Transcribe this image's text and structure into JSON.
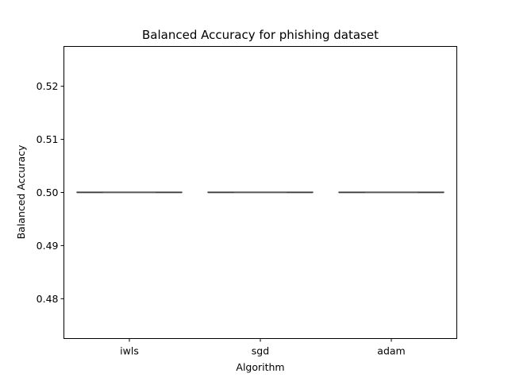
{
  "chart_data": {
    "type": "box",
    "title": "Balanced Accuracy for phishing dataset",
    "xlabel": "Algorithm",
    "ylabel": "Balanced Accuracy",
    "categories": [
      "iwls",
      "sgd",
      "adam"
    ],
    "ylim": [
      0.4725,
      0.5275
    ],
    "yticks": [
      0.48,
      0.49,
      0.5,
      0.51,
      0.52
    ],
    "ytick_labels": [
      "0.48",
      "0.49",
      "0.50",
      "0.51",
      "0.52"
    ],
    "grid": false,
    "boxes": [
      {
        "category": "iwls",
        "min": 0.5,
        "q1": 0.5,
        "median": 0.5,
        "q3": 0.5,
        "max": 0.5
      },
      {
        "category": "sgd",
        "min": 0.5,
        "q1": 0.5,
        "median": 0.5,
        "q3": 0.5,
        "max": 0.5
      },
      {
        "category": "adam",
        "min": 0.5,
        "q1": 0.5,
        "median": 0.5,
        "q3": 0.5,
        "max": 0.5
      }
    ],
    "box_color": "#3f3f3f"
  }
}
